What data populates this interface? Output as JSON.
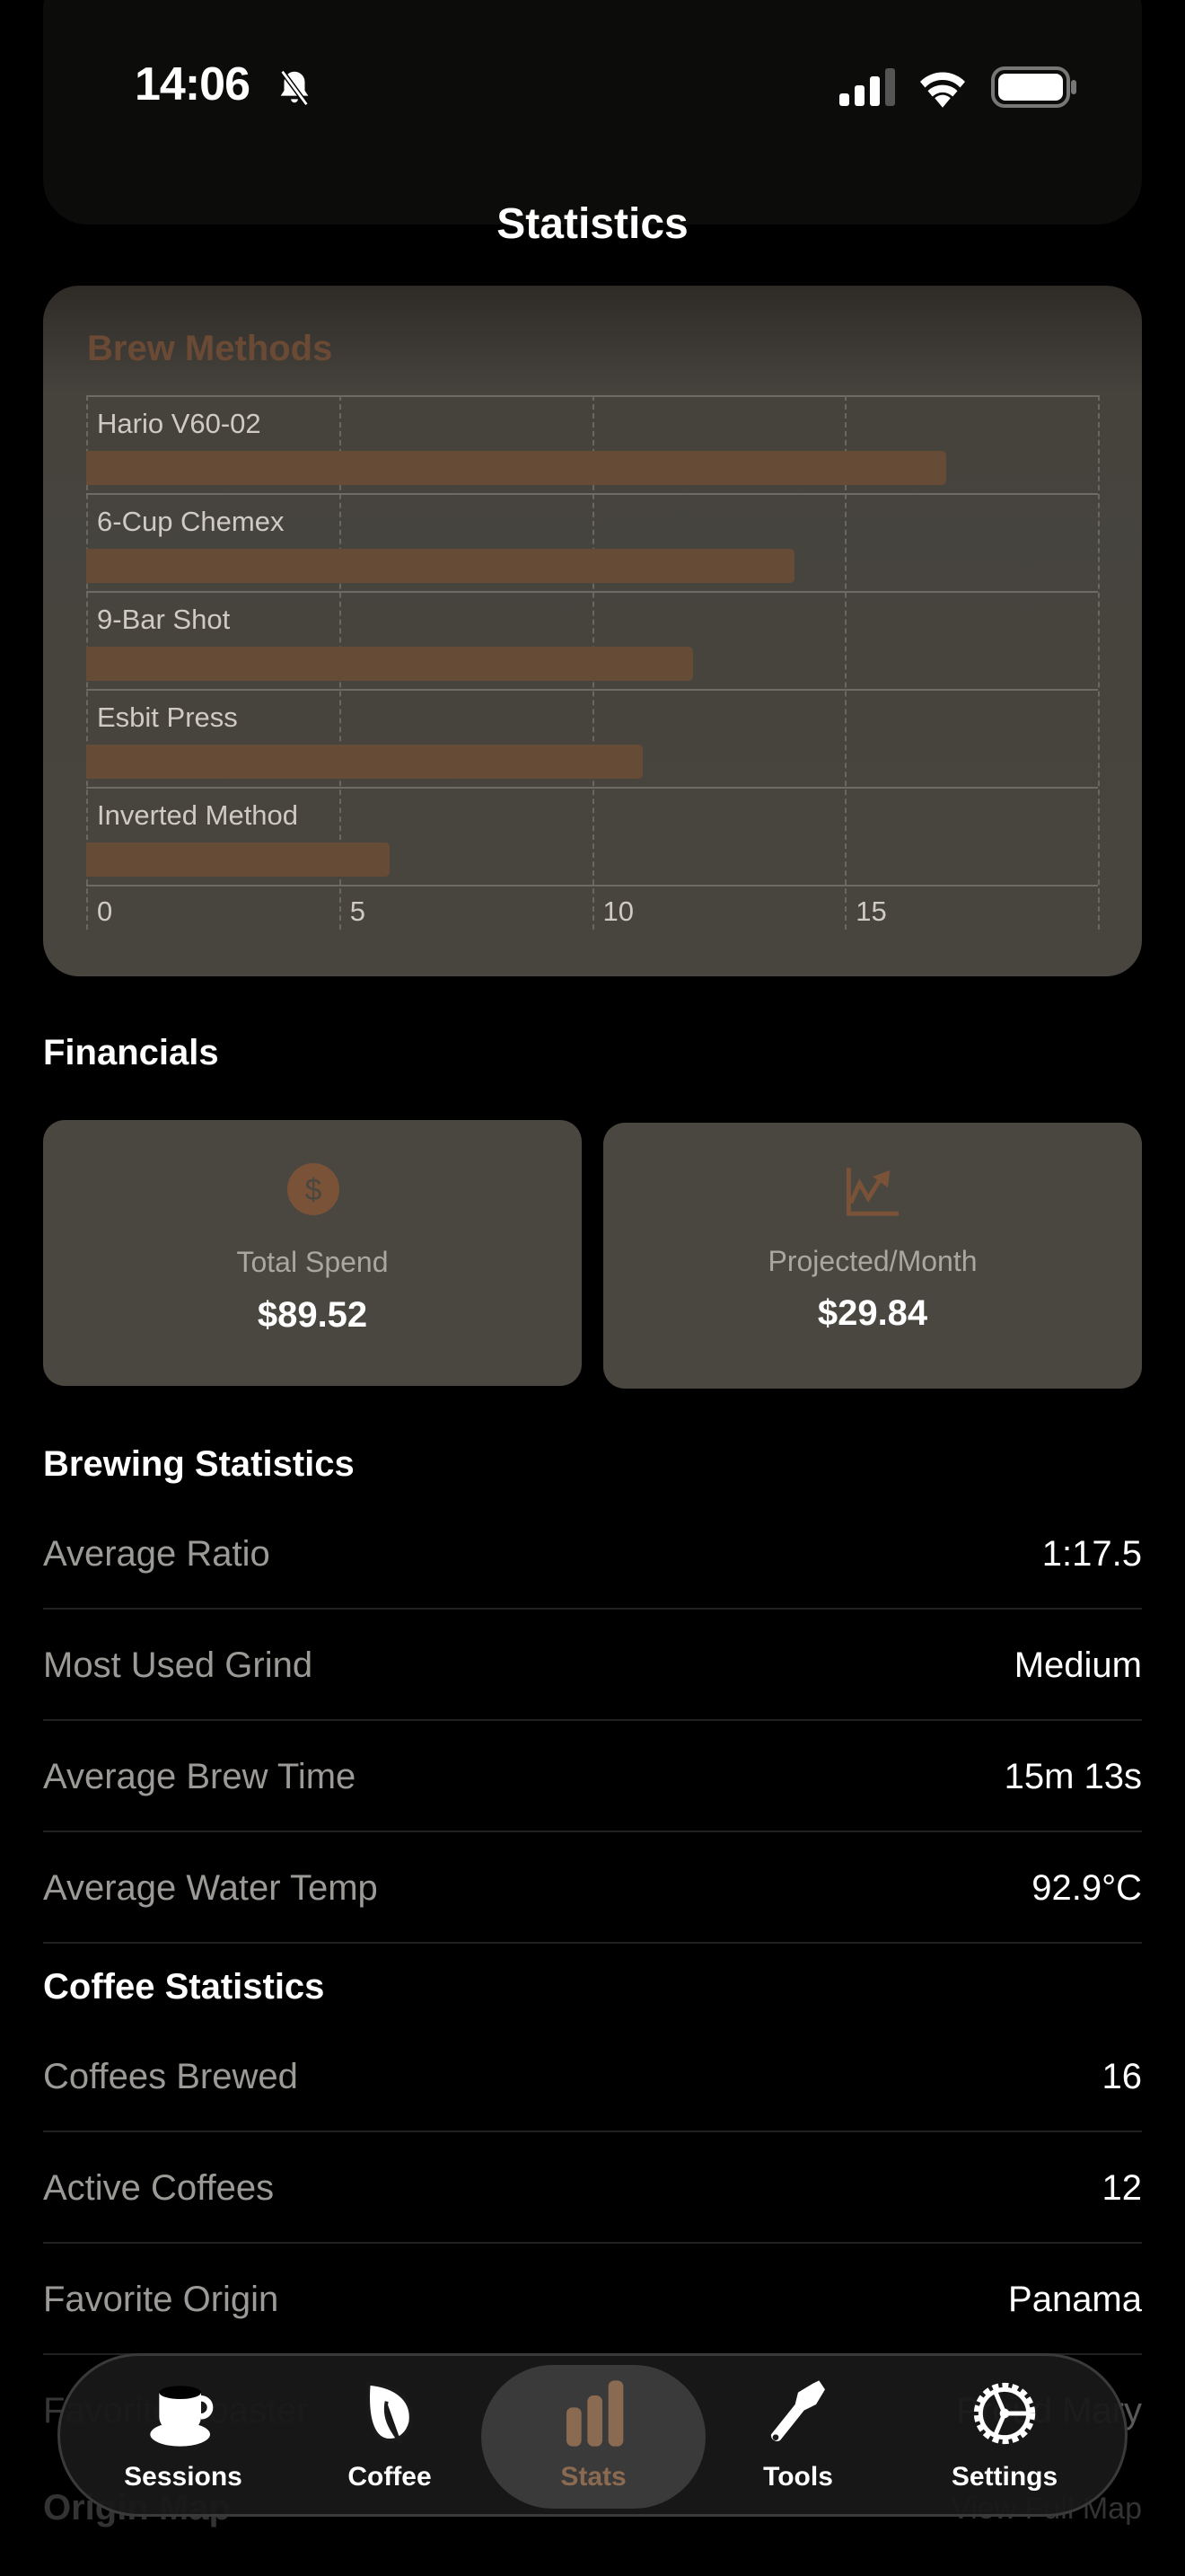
{
  "status_bar": {
    "time": "14:06",
    "icons": [
      "bell-slash-icon",
      "cellular-icon",
      "wifi-icon",
      "battery-icon"
    ]
  },
  "header": {
    "title": "Statistics"
  },
  "chart_data": {
    "type": "bar",
    "orientation": "horizontal",
    "title": "Brew Methods",
    "categories": [
      "Hario V60-02",
      "6-Cup Chemex",
      "9-Bar Shot",
      "Esbit Press",
      "Inverted Method"
    ],
    "values": [
      17,
      14,
      12,
      11,
      6
    ],
    "xlim": [
      0,
      20
    ],
    "ticks": [
      "0",
      "5",
      "10",
      "15"
    ],
    "grid": true,
    "bar_color": "#664c37"
  },
  "financials": {
    "heading": "Financials",
    "cards": [
      {
        "icon": "dollar-circle-icon",
        "label": "Total Spend",
        "value": "$89.52"
      },
      {
        "icon": "chart-trend-icon",
        "label": "Projected/Month",
        "value": "$29.84"
      }
    ]
  },
  "brewing": {
    "heading": "Brewing Statistics",
    "rows": [
      {
        "label": "Average Ratio",
        "value": "1:17.5"
      },
      {
        "label": "Most Used Grind",
        "value": "Medium"
      },
      {
        "label": "Average Brew Time",
        "value": "15m 13s"
      },
      {
        "label": "Average Water Temp",
        "value": "92.9°C"
      }
    ]
  },
  "coffee": {
    "heading": "Coffee Statistics",
    "rows": [
      {
        "label": "Coffees Brewed",
        "value": "16"
      },
      {
        "label": "Active Coffees",
        "value": "12"
      },
      {
        "label": "Favorite Origin",
        "value": "Panama"
      },
      {
        "label": "Favorite Roaster",
        "value": "Proud Mary"
      }
    ]
  },
  "origin_map": {
    "heading": "Origin Map",
    "link": "View Full Map"
  },
  "tabs": [
    {
      "label": "Sessions",
      "icon": "cup-icon"
    },
    {
      "label": "Coffee",
      "icon": "leaf-icon"
    },
    {
      "label": "Stats",
      "icon": "bar-chart-icon",
      "selected": true
    },
    {
      "label": "Tools",
      "icon": "wrench-icon"
    },
    {
      "label": "Settings",
      "icon": "gear-icon"
    }
  ],
  "accent": "#8a6a50"
}
